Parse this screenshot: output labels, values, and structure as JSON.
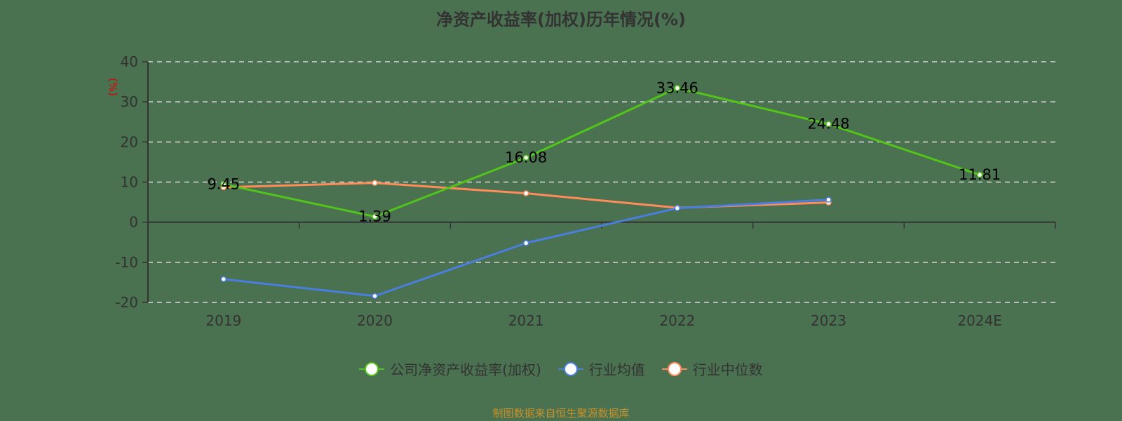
{
  "title": "净资产收益率(加权)历年情况(%)",
  "y_unit_label": "(%)",
  "source": "制图数据来自恒生聚源数据库",
  "colors": {
    "background": "#4a7150",
    "company": "#52c41a",
    "industry_avg": "#4a7fe0",
    "industry_median": "#ff8c5a",
    "axis": "#333333",
    "grid": "#d9d9d9",
    "unit_label": "#e00000",
    "source": "#c8922a"
  },
  "legend": [
    {
      "label": "公司净资产收益率(加权)",
      "color": "#52c41a"
    },
    {
      "label": "行业均值",
      "color": "#4a7fe0"
    },
    {
      "label": "行业中位数",
      "color": "#ff8c5a"
    }
  ],
  "chart_data": {
    "type": "line",
    "title": "净资产收益率(加权)历年情况(%)",
    "xlabel": "",
    "ylabel": "(%)",
    "categories": [
      "2019",
      "2020",
      "2021",
      "2022",
      "2023",
      "2024E"
    ],
    "ylim": [
      -20,
      40
    ],
    "yticks": [
      40,
      30,
      20,
      10,
      0,
      -10,
      -20
    ],
    "grid": true,
    "legend_position": "bottom",
    "series": [
      {
        "name": "公司净资产收益率(加权)",
        "values": [
          9.45,
          1.39,
          16.08,
          33.46,
          24.48,
          11.81
        ],
        "labels_shown": true
      },
      {
        "name": "行业均值",
        "values": [
          -14.2,
          -18.4,
          -5.2,
          3.5,
          5.6,
          null
        ]
      },
      {
        "name": "行业中位数",
        "values": [
          8.7,
          9.8,
          7.2,
          3.6,
          4.9,
          null
        ]
      }
    ]
  }
}
